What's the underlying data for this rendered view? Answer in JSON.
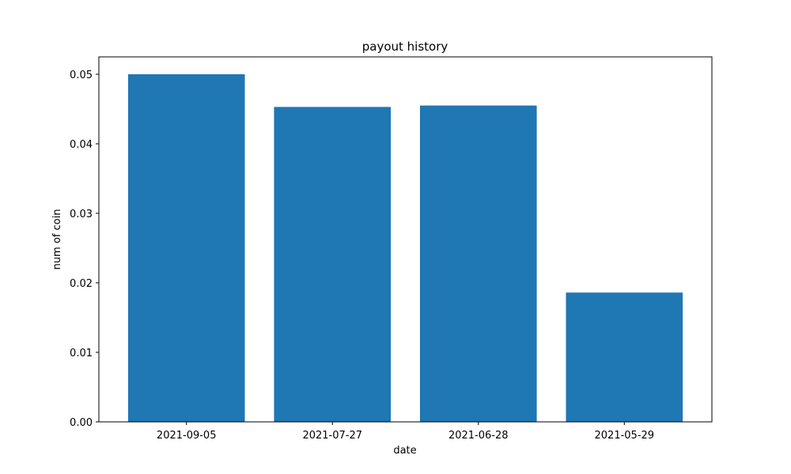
{
  "chart_data": {
    "type": "bar",
    "title": "payout history",
    "xlabel": "date",
    "ylabel": "num of coin",
    "categories": [
      "2021-09-05",
      "2021-07-27",
      "2021-06-28",
      "2021-05-29"
    ],
    "values": [
      0.05,
      0.0453,
      0.0455,
      0.0186
    ],
    "ylim": [
      0,
      0.0525
    ],
    "yticks": [
      0.0,
      0.01,
      0.02,
      0.03,
      0.04,
      0.05
    ],
    "ytick_labels": [
      "0.00",
      "0.01",
      "0.02",
      "0.03",
      "0.04",
      "0.05"
    ],
    "grid": false,
    "bar_color": "#1f77b4"
  }
}
